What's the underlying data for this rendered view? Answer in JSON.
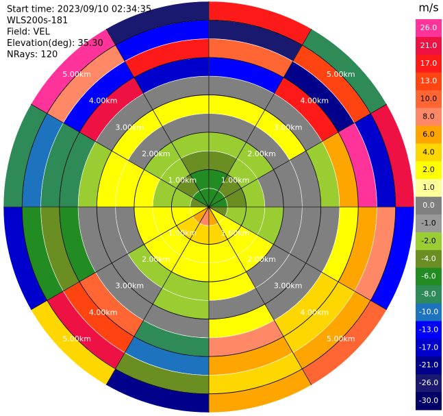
{
  "chart_data": {
    "type": "ppi",
    "info": [
      "Start time: 2023/09/10 02:34:35",
      "WLS200s-181",
      "Field: VEL",
      "Elevation(deg): 35.30",
      "NRays: 120"
    ],
    "rlim": [
      0,
      5.5
    ],
    "rticks": [
      {
        "value": 1,
        "label": "1.00km"
      },
      {
        "value": 2,
        "label": "2.00km"
      },
      {
        "value": 3,
        "label": "3.00km"
      },
      {
        "value": 4,
        "label": "4.00km"
      },
      {
        "value": 5,
        "label": "5.00km"
      }
    ],
    "range_edges_km": [
      0,
      0.5,
      1,
      1.5,
      2,
      2.5,
      3,
      3.5,
      4,
      4.5,
      5,
      5.5
    ],
    "sector_values": [
      [
        -6,
        -6,
        -6,
        -4,
        2,
        6,
        8,
        6,
        2,
        -4,
        -6,
        -6
      ],
      [
        -6,
        -4,
        -4,
        -2,
        2,
        4,
        4,
        4,
        2,
        -2,
        -4,
        -6
      ],
      [
        -4,
        -2,
        -2,
        -2,
        2,
        2,
        2,
        2,
        2,
        -2,
        -2,
        -4
      ],
      [
        -2,
        -2,
        0,
        -2,
        2,
        2,
        2,
        2,
        2,
        2,
        -2,
        -2
      ],
      [
        0,
        0,
        0,
        0,
        0,
        2,
        -2,
        -2,
        0,
        2,
        0,
        0
      ],
      [
        2,
        2,
        0,
        0,
        0,
        0,
        -2,
        0,
        0,
        2,
        2,
        2
      ],
      [
        0,
        0,
        -2,
        0,
        0,
        2,
        0,
        0,
        0,
        -2,
        0,
        0
      ],
      [
        -13,
        17,
        6,
        2,
        4,
        8,
        -8,
        10,
        -6,
        -8,
        21,
        -17
      ],
      [
        10,
        -21,
        26,
        6,
        4,
        6,
        -10,
        13,
        -4,
        -8,
        -13,
        17
      ],
      [
        -26,
        13,
        -17,
        8,
        6,
        4,
        -4,
        21,
        -6,
        -10,
        8,
        -13
      ],
      [
        17,
        -8,
        21,
        -13,
        10,
        6,
        -21,
        4,
        -17,
        -8,
        26,
        -26
      ]
    ],
    "colorbar": {
      "title": "m/s",
      "ticks": [
        {
          "value": 26,
          "label": "26.0"
        },
        {
          "value": 21,
          "label": "21.0"
        },
        {
          "value": 17,
          "label": "17.0"
        },
        {
          "value": 13,
          "label": "13.0"
        },
        {
          "value": 10,
          "label": "10.0"
        },
        {
          "value": 8,
          "label": "8.0"
        },
        {
          "value": 6,
          "label": "6.0"
        },
        {
          "value": 4,
          "label": "4.0"
        },
        {
          "value": 2,
          "label": "2.0"
        },
        {
          "value": 1,
          "label": "1.0"
        },
        {
          "value": 0,
          "label": "0.0"
        },
        {
          "value": -1,
          "label": "-1.0"
        },
        {
          "value": -2,
          "label": "-2.0"
        },
        {
          "value": -4,
          "label": "-4.0"
        },
        {
          "value": -6,
          "label": "-6.0"
        },
        {
          "value": -8,
          "label": "-8.0"
        },
        {
          "value": -10,
          "label": "-10.0"
        },
        {
          "value": -13,
          "label": "-13.0"
        },
        {
          "value": -17,
          "label": "-17.0"
        },
        {
          "value": -21,
          "label": "-21.0"
        },
        {
          "value": -26,
          "label": "-26.0"
        },
        {
          "value": -30,
          "label": "-30.0"
        }
      ],
      "colors": [
        "#ff3399",
        "#ee1144",
        "#ff1a1a",
        "#ff4411",
        "#ff6633",
        "#ff8866",
        "#ffa500",
        "#ffd700",
        "#ffff00",
        "#ffff99",
        "#808080",
        "#999999",
        "#9acd32",
        "#6b8e23",
        "#228b22",
        "#2e8b57",
        "#1e73be",
        "#0000ff",
        "#0000cd",
        "#00008b",
        "#191970",
        "#000066"
      ]
    }
  }
}
